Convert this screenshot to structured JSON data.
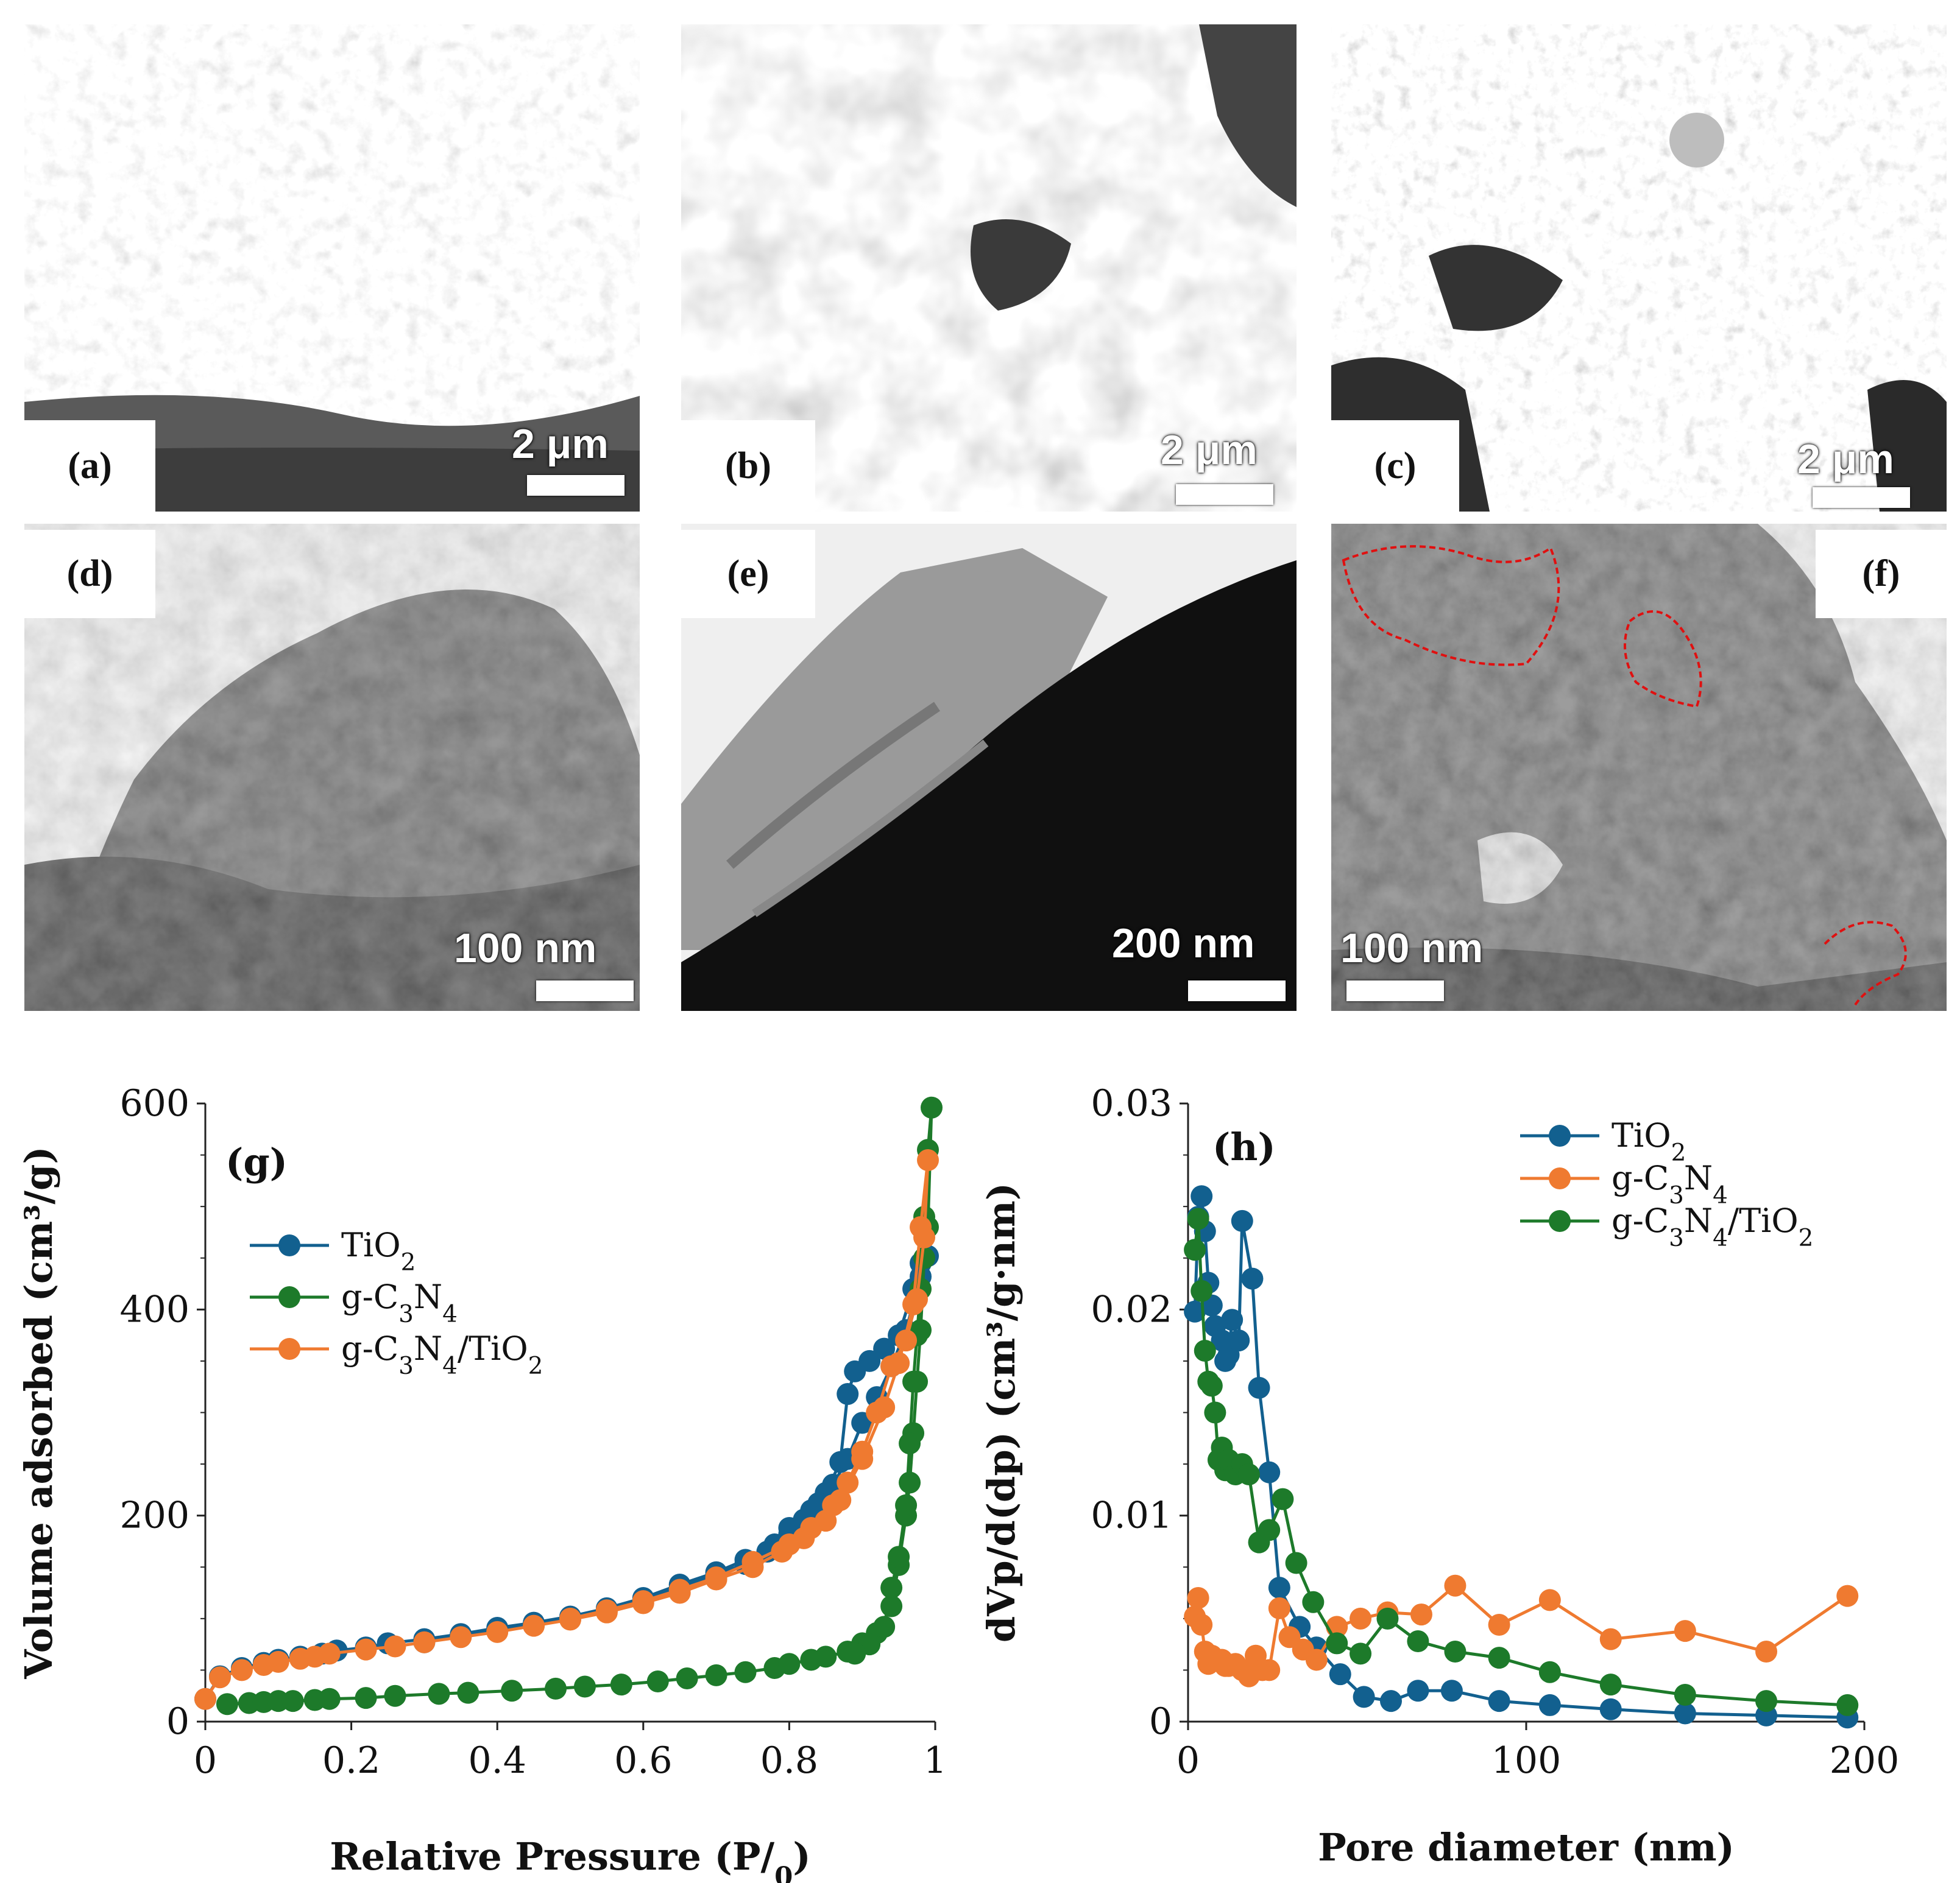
{
  "panels": {
    "a": {
      "label": "(a)",
      "scale": "2 μm"
    },
    "b": {
      "label": "(b)",
      "scale": "2 μm"
    },
    "c": {
      "label": "(c)",
      "scale": "2 μm"
    },
    "d": {
      "label": "(d)",
      "scale": "100 nm"
    },
    "e": {
      "label": "(e)",
      "scale": "200 nm"
    },
    "f": {
      "label": "(f)",
      "scale": "100 nm"
    }
  },
  "colors": {
    "tio2": "#12608f",
    "gc3n4": "#ef7a30",
    "composite": "#1d7a2a"
  },
  "chart_data": [
    {
      "type": "line",
      "panel_label": "(g)",
      "xlabel": "Relative Pressure (P/P0)",
      "ylabel": "Volume adsorbed (cm³/g)",
      "xlim": [
        0,
        1
      ],
      "ylim": [
        0,
        600
      ],
      "xticks": [
        "0",
        "0.2",
        "0.4",
        "0.6",
        "0.8",
        "1"
      ],
      "yticks": [
        "0",
        "200",
        "400",
        "600"
      ],
      "legend_position": "upper-left",
      "legend": [
        "TiO2",
        "g-C3N4",
        "g-C3N4/TiO2"
      ],
      "series": [
        {
          "name": "TiO2",
          "color": "#12608f",
          "points": [
            [
              0,
              22
            ],
            [
              0.02,
              44
            ],
            [
              0.05,
              52
            ],
            [
              0.08,
              57
            ],
            [
              0.1,
              60
            ],
            [
              0.13,
              63
            ],
            [
              0.16,
              66
            ],
            [
              0.18,
              69
            ],
            [
              0.22,
              72
            ],
            [
              0.25,
              76
            ],
            [
              0.3,
              80
            ],
            [
              0.35,
              85
            ],
            [
              0.4,
              91
            ],
            [
              0.45,
              96
            ],
            [
              0.5,
              102
            ],
            [
              0.55,
              110
            ],
            [
              0.6,
              120
            ],
            [
              0.65,
              133
            ],
            [
              0.7,
              145
            ],
            [
              0.74,
              157
            ],
            [
              0.78,
              172
            ],
            [
              0.8,
              188
            ],
            [
              0.83,
              205
            ],
            [
              0.85,
              222
            ],
            [
              0.87,
              252
            ],
            [
              0.88,
              318
            ],
            [
              0.89,
              340
            ],
            [
              0.91,
              350
            ],
            [
              0.93,
              362
            ],
            [
              0.95,
              375
            ],
            [
              0.97,
              420
            ],
            [
              0.98,
              445
            ],
            [
              0.99,
              452
            ],
            [
              0.98,
              432
            ],
            [
              0.96,
              380
            ],
            [
              0.94,
              345
            ],
            [
              0.92,
              315
            ],
            [
              0.9,
              290
            ],
            [
              0.88,
              255
            ],
            [
              0.86,
              230
            ],
            [
              0.84,
              212
            ],
            [
              0.82,
              196
            ],
            [
              0.8,
              182
            ],
            [
              0.77,
              165
            ],
            [
              0.74,
              153
            ],
            [
              0.7,
              143
            ],
            [
              0.65,
              130
            ],
            [
              0.6,
              118
            ],
            [
              0.55,
              108
            ],
            [
              0.5,
              100
            ],
            [
              0.45,
              94
            ],
            [
              0.4,
              89
            ],
            [
              0.35,
              83
            ],
            [
              0.3,
              77
            ]
          ]
        },
        {
          "name": "g-C3N4",
          "color": "#1d7a2a",
          "points": [
            [
              0.03,
              17
            ],
            [
              0.06,
              18
            ],
            [
              0.08,
              19
            ],
            [
              0.1,
              20
            ],
            [
              0.12,
              20
            ],
            [
              0.15,
              21
            ],
            [
              0.17,
              22
            ],
            [
              0.22,
              23
            ],
            [
              0.26,
              25
            ],
            [
              0.32,
              27
            ],
            [
              0.36,
              28
            ],
            [
              0.42,
              30
            ],
            [
              0.48,
              32
            ],
            [
              0.52,
              34
            ],
            [
              0.57,
              36
            ],
            [
              0.62,
              39
            ],
            [
              0.66,
              42
            ],
            [
              0.7,
              45
            ],
            [
              0.74,
              48
            ],
            [
              0.78,
              52
            ],
            [
              0.8,
              56
            ],
            [
              0.83,
              60
            ],
            [
              0.85,
              63
            ],
            [
              0.88,
              68
            ],
            [
              0.9,
              76
            ],
            [
              0.92,
              86
            ],
            [
              0.94,
              112
            ],
            [
              0.95,
              152
            ],
            [
              0.96,
              200
            ],
            [
              0.965,
              232
            ],
            [
              0.97,
              280
            ],
            [
              0.975,
              330
            ],
            [
              0.98,
              380
            ],
            [
              0.985,
              450
            ],
            [
              0.99,
              480
            ],
            [
              0.995,
              596
            ],
            [
              0.99,
              555
            ],
            [
              0.985,
              490
            ],
            [
              0.98,
              420
            ],
            [
              0.975,
              375
            ],
            [
              0.97,
              330
            ],
            [
              0.965,
              270
            ],
            [
              0.96,
              210
            ],
            [
              0.95,
              160
            ],
            [
              0.94,
              130
            ],
            [
              0.93,
              92
            ],
            [
              0.91,
              75
            ],
            [
              0.89,
              66
            ]
          ]
        },
        {
          "name": "g-C3N4/TiO2",
          "color": "#ef7a30",
          "points": [
            [
              0,
              22
            ],
            [
              0.02,
              43
            ],
            [
              0.05,
              50
            ],
            [
              0.08,
              55
            ],
            [
              0.1,
              58
            ],
            [
              0.13,
              61
            ],
            [
              0.15,
              63
            ],
            [
              0.17,
              66
            ],
            [
              0.22,
              70
            ],
            [
              0.26,
              73
            ],
            [
              0.3,
              77
            ],
            [
              0.35,
              82
            ],
            [
              0.4,
              87
            ],
            [
              0.45,
              93
            ],
            [
              0.5,
              99
            ],
            [
              0.55,
              106
            ],
            [
              0.6,
              115
            ],
            [
              0.65,
              125
            ],
            [
              0.7,
              138
            ],
            [
              0.75,
              150
            ],
            [
              0.79,
              165
            ],
            [
              0.82,
              178
            ],
            [
              0.85,
              195
            ],
            [
              0.87,
              215
            ],
            [
              0.9,
              255
            ],
            [
              0.93,
              305
            ],
            [
              0.95,
              348
            ],
            [
              0.97,
              405
            ],
            [
              0.98,
              480
            ],
            [
              0.99,
              545
            ],
            [
              0.985,
              470
            ],
            [
              0.975,
              410
            ],
            [
              0.96,
              370
            ],
            [
              0.94,
              345
            ],
            [
              0.92,
              300
            ],
            [
              0.9,
              262
            ],
            [
              0.88,
              232
            ],
            [
              0.86,
              210
            ],
            [
              0.83,
              188
            ],
            [
              0.8,
              172
            ],
            [
              0.75,
              155
            ],
            [
              0.7,
              140
            ],
            [
              0.65,
              128
            ],
            [
              0.6,
              117
            ],
            [
              0.55,
              108
            ],
            [
              0.5,
              100
            ]
          ]
        }
      ]
    },
    {
      "type": "line",
      "panel_label": "(h)",
      "xlabel": "Pore diameter (nm)",
      "ylabel": "dVp/d(dp) (cm³/g·nm)",
      "xlim": [
        0,
        200
      ],
      "ylim": [
        0,
        0.03
      ],
      "xticks": [
        "0",
        "100",
        "200"
      ],
      "yticks": [
        "0",
        "0.01",
        "0.02",
        "0.03"
      ],
      "legend_position": "upper-right",
      "legend": [
        "TiO2",
        "g-C3N4",
        "g-C3N4/TiO2"
      ],
      "series": [
        {
          "name": "TiO2",
          "color": "#12608f",
          "points": [
            [
              2,
              0.0199
            ],
            [
              3,
              0.0245
            ],
            [
              4,
              0.0255
            ],
            [
              5,
              0.0238
            ],
            [
              6,
              0.0213
            ],
            [
              7,
              0.0202
            ],
            [
              8,
              0.0192
            ],
            [
              10,
              0.0185
            ],
            [
              11,
              0.0175
            ],
            [
              12,
              0.0178
            ],
            [
              13,
              0.0195
            ],
            [
              15,
              0.0185
            ],
            [
              16,
              0.0243
            ],
            [
              19,
              0.0215
            ],
            [
              21,
              0.0162
            ],
            [
              24,
              0.0121
            ],
            [
              27,
              0.0065
            ],
            [
              33,
              0.0046
            ],
            [
              38,
              0.0036
            ],
            [
              45,
              0.0023
            ],
            [
              52,
              0.0012
            ],
            [
              60,
              0.001
            ],
            [
              68,
              0.0015
            ],
            [
              78,
              0.0015
            ],
            [
              92,
              0.001
            ],
            [
              107,
              0.0008
            ],
            [
              125,
              0.0006
            ],
            [
              147,
              0.0004
            ],
            [
              171,
              0.0003
            ],
            [
              195,
              0.0002
            ]
          ]
        },
        {
          "name": "g-C3N4",
          "color": "#ef7a30",
          "points": [
            [
              2,
              0.0051
            ],
            [
              3,
              0.006
            ],
            [
              4,
              0.0047
            ],
            [
              5,
              0.0034
            ],
            [
              6,
              0.0028
            ],
            [
              7,
              0.0032
            ],
            [
              8,
              0.003
            ],
            [
              10,
              0.003
            ],
            [
              11,
              0.0027
            ],
            [
              12,
              0.0027
            ],
            [
              14,
              0.0028
            ],
            [
              16,
              0.0025
            ],
            [
              18,
              0.0022
            ],
            [
              20,
              0.0032
            ],
            [
              22,
              0.0025
            ],
            [
              24,
              0.0025
            ],
            [
              27,
              0.0055
            ],
            [
              30,
              0.0041
            ],
            [
              34,
              0.0035
            ],
            [
              38,
              0.003
            ],
            [
              44,
              0.0046
            ],
            [
              51,
              0.005
            ],
            [
              59,
              0.0053
            ],
            [
              69,
              0.0052
            ],
            [
              79,
              0.0066
            ],
            [
              92,
              0.0047
            ],
            [
              107,
              0.0059
            ],
            [
              125,
              0.004
            ],
            [
              147,
              0.0044
            ],
            [
              171,
              0.0034
            ],
            [
              195,
              0.0061
            ]
          ]
        },
        {
          "name": "g-C3N4/TiO2",
          "color": "#1d7a2a",
          "points": [
            [
              2,
              0.0229
            ],
            [
              3,
              0.0244
            ],
            [
              4,
              0.0209
            ],
            [
              5,
              0.018
            ],
            [
              6,
              0.0165
            ],
            [
              7,
              0.0163
            ],
            [
              8,
              0.015
            ],
            [
              9,
              0.0127
            ],
            [
              10,
              0.0133
            ],
            [
              11,
              0.0122
            ],
            [
              12,
              0.0127
            ],
            [
              14,
              0.012
            ],
            [
              16,
              0.0125
            ],
            [
              18,
              0.012
            ],
            [
              21,
              0.0087
            ],
            [
              24,
              0.0093
            ],
            [
              28,
              0.0108
            ],
            [
              32,
              0.0077
            ],
            [
              37,
              0.0058
            ],
            [
              44,
              0.0038
            ],
            [
              51,
              0.0033
            ],
            [
              59,
              0.005
            ],
            [
              68,
              0.0039
            ],
            [
              79,
              0.0034
            ],
            [
              92,
              0.0031
            ],
            [
              107,
              0.0024
            ],
            [
              125,
              0.0018
            ],
            [
              147,
              0.0013
            ],
            [
              171,
              0.001
            ],
            [
              195,
              0.0008
            ]
          ]
        }
      ]
    }
  ]
}
